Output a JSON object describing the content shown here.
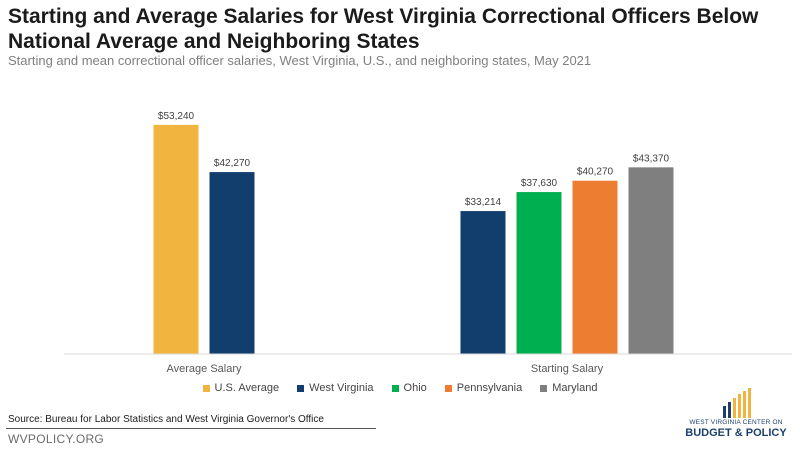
{
  "title": "Starting and Average Salaries for West Virginia Correctional Officers Below National Average and Neighboring States",
  "subtitle": "Starting and mean correctional officer salaries, West Virginia, U.S., and neighboring states, May 2021",
  "source": "Source: Bureau for Labor Statistics and West Virginia Governor's Office",
  "footer_url": "WVPOLICY.ORG",
  "logo": {
    "line1": "WEST VIRGINIA CENTER ON",
    "line2": "BUDGET & POLICY"
  },
  "chart_data": {
    "type": "bar",
    "categories": [
      "Average Salary",
      "Starting Salary"
    ],
    "ylim": [
      0,
      56000
    ],
    "grid": false,
    "legend_position": "bottom",
    "series": [
      {
        "name": "U.S. Average",
        "color": "#f0b43f",
        "values": [
          53240,
          null
        ],
        "labels": [
          "$53,240",
          null
        ]
      },
      {
        "name": "West Virginia",
        "color": "#123e6e",
        "values": [
          42270,
          33214
        ],
        "labels": [
          "$42,270",
          "$33,214"
        ]
      },
      {
        "name": "Ohio",
        "color": "#00af50",
        "values": [
          null,
          37630
        ],
        "labels": [
          null,
          "$37,630"
        ]
      },
      {
        "name": "Pennsylvania",
        "color": "#ed7d31",
        "values": [
          null,
          40270
        ],
        "labels": [
          null,
          "$40,270"
        ]
      },
      {
        "name": "Maryland",
        "color": "#7f7f7f",
        "values": [
          null,
          43370
        ],
        "labels": [
          null,
          "$43,370"
        ]
      }
    ]
  }
}
